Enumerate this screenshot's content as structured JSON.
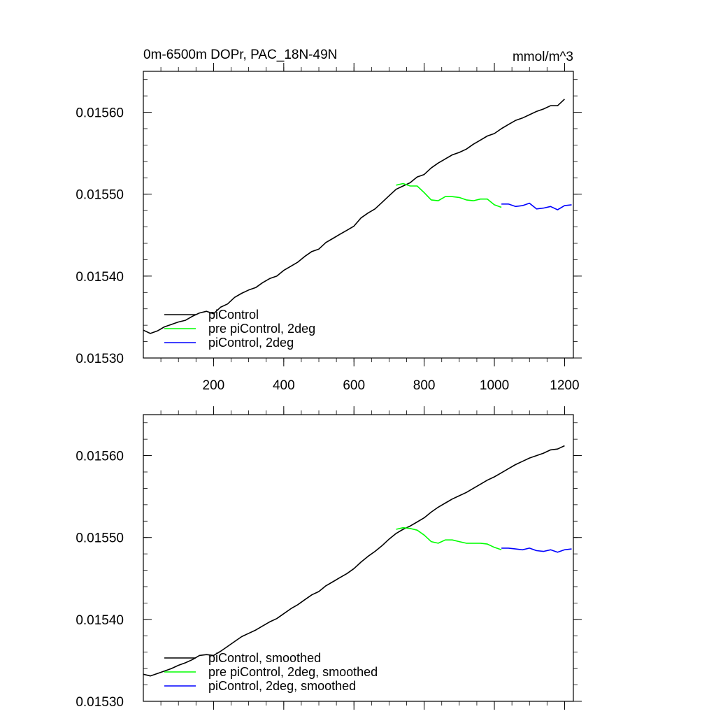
{
  "chart_data": [
    {
      "type": "line",
      "title": "0m-6500m DOPr, PAC_18N-49N",
      "units": "mmol/m^3",
      "xlim": [
        0,
        1225
      ],
      "ylim": [
        0.0153,
        0.01565
      ],
      "xticks": [
        200,
        400,
        600,
        800,
        1000,
        1200
      ],
      "xtick_labels": [
        "200",
        "400",
        "600",
        "800",
        "1000",
        "1200"
      ],
      "yticks": [
        0.0153,
        0.0154,
        0.0155,
        0.0156
      ],
      "ytick_labels": [
        "0.01530",
        "0.01540",
        "0.01550",
        "0.01560"
      ],
      "grid": false,
      "legend_position": "bottom-left",
      "series": [
        {
          "name": "piControl",
          "color": "#000000",
          "points": [
            [
              0,
              0.015334
            ],
            [
              20,
              0.01533
            ],
            [
              40,
              0.015333
            ],
            [
              60,
              0.015338
            ],
            [
              80,
              0.015341
            ],
            [
              100,
              0.015344
            ],
            [
              120,
              0.015346
            ],
            [
              140,
              0.015351
            ],
            [
              160,
              0.015355
            ],
            [
              180,
              0.015357
            ],
            [
              200,
              0.015354
            ],
            [
              220,
              0.015362
            ],
            [
              240,
              0.015366
            ],
            [
              260,
              0.015374
            ],
            [
              280,
              0.015379
            ],
            [
              300,
              0.015383
            ],
            [
              320,
              0.015386
            ],
            [
              340,
              0.015392
            ],
            [
              360,
              0.015397
            ],
            [
              380,
              0.0154
            ],
            [
              400,
              0.015407
            ],
            [
              420,
              0.015412
            ],
            [
              440,
              0.015417
            ],
            [
              460,
              0.015424
            ],
            [
              480,
              0.01543
            ],
            [
              500,
              0.015433
            ],
            [
              520,
              0.015441
            ],
            [
              540,
              0.015446
            ],
            [
              560,
              0.015451
            ],
            [
              580,
              0.015456
            ],
            [
              600,
              0.015461
            ],
            [
              620,
              0.015471
            ],
            [
              640,
              0.015477
            ],
            [
              660,
              0.015482
            ],
            [
              680,
              0.01549
            ],
            [
              700,
              0.015498
            ],
            [
              720,
              0.015506
            ],
            [
              740,
              0.01551
            ],
            [
              760,
              0.015514
            ],
            [
              780,
              0.015521
            ],
            [
              800,
              0.015524
            ],
            [
              820,
              0.015532
            ],
            [
              840,
              0.015538
            ],
            [
              860,
              0.015543
            ],
            [
              880,
              0.015548
            ],
            [
              900,
              0.015551
            ],
            [
              920,
              0.015555
            ],
            [
              940,
              0.015561
            ],
            [
              960,
              0.015566
            ],
            [
              980,
              0.015571
            ],
            [
              1000,
              0.015574
            ],
            [
              1020,
              0.01558
            ],
            [
              1040,
              0.015585
            ],
            [
              1060,
              0.01559
            ],
            [
              1080,
              0.015593
            ],
            [
              1100,
              0.015597
            ],
            [
              1120,
              0.015601
            ],
            [
              1140,
              0.015604
            ],
            [
              1160,
              0.015608
            ],
            [
              1180,
              0.015608
            ],
            [
              1200,
              0.015616
            ]
          ]
        },
        {
          "name": "pre piControl, 2deg",
          "color": "#00ff00",
          "points": [
            [
              720,
              0.015511
            ],
            [
              740,
              0.015513
            ],
            [
              760,
              0.01551
            ],
            [
              780,
              0.01551
            ],
            [
              800,
              0.015502
            ],
            [
              820,
              0.015493
            ],
            [
              840,
              0.015492
            ],
            [
              860,
              0.015497
            ],
            [
              880,
              0.015497
            ],
            [
              900,
              0.015496
            ],
            [
              920,
              0.015493
            ],
            [
              940,
              0.015492
            ],
            [
              960,
              0.015494
            ],
            [
              980,
              0.015494
            ],
            [
              1000,
              0.015487
            ],
            [
              1020,
              0.015484
            ]
          ]
        },
        {
          "name": "piControl, 2deg",
          "color": "#0000ff",
          "points": [
            [
              1020,
              0.015488
            ],
            [
              1040,
              0.015488
            ],
            [
              1060,
              0.015485
            ],
            [
              1080,
              0.015486
            ],
            [
              1100,
              0.015489
            ],
            [
              1120,
              0.015482
            ],
            [
              1140,
              0.015483
            ],
            [
              1160,
              0.015485
            ],
            [
              1180,
              0.015481
            ],
            [
              1200,
              0.015486
            ],
            [
              1220,
              0.015487
            ]
          ]
        }
      ]
    },
    {
      "type": "line",
      "title": "",
      "units": "",
      "xlim": [
        0,
        1225
      ],
      "ylim": [
        0.0153,
        0.01565
      ],
      "xticks": [
        200,
        400,
        600,
        800,
        1000,
        1200
      ],
      "yticks": [
        0.0153,
        0.0154,
        0.0155,
        0.0156
      ],
      "ytick_labels": [
        "0.01530",
        "0.01540",
        "0.01550",
        "0.01560"
      ],
      "grid": false,
      "legend_position": "bottom-left",
      "series": [
        {
          "name": "piControl, smoothed",
          "color": "#000000",
          "points": [
            [
              0,
              0.015333
            ],
            [
              20,
              0.015331
            ],
            [
              40,
              0.015334
            ],
            [
              60,
              0.015337
            ],
            [
              80,
              0.01534
            ],
            [
              100,
              0.015344
            ],
            [
              120,
              0.015347
            ],
            [
              140,
              0.015351
            ],
            [
              160,
              0.015356
            ],
            [
              180,
              0.015357
            ],
            [
              200,
              0.015356
            ],
            [
              220,
              0.015361
            ],
            [
              240,
              0.015367
            ],
            [
              260,
              0.015373
            ],
            [
              280,
              0.015379
            ],
            [
              300,
              0.015383
            ],
            [
              320,
              0.015387
            ],
            [
              340,
              0.015392
            ],
            [
              360,
              0.015397
            ],
            [
              380,
              0.015401
            ],
            [
              400,
              0.015407
            ],
            [
              420,
              0.015413
            ],
            [
              440,
              0.015418
            ],
            [
              460,
              0.015424
            ],
            [
              480,
              0.01543
            ],
            [
              500,
              0.015434
            ],
            [
              520,
              0.015441
            ],
            [
              540,
              0.015446
            ],
            [
              560,
              0.015451
            ],
            [
              580,
              0.015456
            ],
            [
              600,
              0.015462
            ],
            [
              620,
              0.01547
            ],
            [
              640,
              0.015477
            ],
            [
              660,
              0.015483
            ],
            [
              680,
              0.01549
            ],
            [
              700,
              0.015498
            ],
            [
              720,
              0.015505
            ],
            [
              740,
              0.01551
            ],
            [
              760,
              0.015514
            ],
            [
              780,
              0.015519
            ],
            [
              800,
              0.015524
            ],
            [
              820,
              0.015531
            ],
            [
              840,
              0.015537
            ],
            [
              860,
              0.015542
            ],
            [
              880,
              0.015547
            ],
            [
              900,
              0.015551
            ],
            [
              920,
              0.015555
            ],
            [
              940,
              0.01556
            ],
            [
              960,
              0.015565
            ],
            [
              980,
              0.01557
            ],
            [
              1000,
              0.015574
            ],
            [
              1020,
              0.015579
            ],
            [
              1040,
              0.015584
            ],
            [
              1060,
              0.015589
            ],
            [
              1080,
              0.015593
            ],
            [
              1100,
              0.015597
            ],
            [
              1120,
              0.0156
            ],
            [
              1140,
              0.015603
            ],
            [
              1160,
              0.015607
            ],
            [
              1180,
              0.015608
            ],
            [
              1200,
              0.015612
            ]
          ]
        },
        {
          "name": "pre piControl, 2deg, smoothed",
          "color": "#00ff00",
          "points": [
            [
              720,
              0.01551
            ],
            [
              740,
              0.015512
            ],
            [
              760,
              0.015511
            ],
            [
              780,
              0.015509
            ],
            [
              800,
              0.015503
            ],
            [
              820,
              0.015495
            ],
            [
              840,
              0.015493
            ],
            [
              860,
              0.015497
            ],
            [
              880,
              0.015497
            ],
            [
              900,
              0.015495
            ],
            [
              920,
              0.015493
            ],
            [
              940,
              0.015493
            ],
            [
              960,
              0.015493
            ],
            [
              980,
              0.015492
            ],
            [
              1000,
              0.015488
            ],
            [
              1020,
              0.015485
            ]
          ]
        },
        {
          "name": "piControl, 2deg, smoothed",
          "color": "#0000ff",
          "points": [
            [
              1020,
              0.015487
            ],
            [
              1040,
              0.015487
            ],
            [
              1060,
              0.015486
            ],
            [
              1080,
              0.015485
            ],
            [
              1100,
              0.015487
            ],
            [
              1120,
              0.015484
            ],
            [
              1140,
              0.015483
            ],
            [
              1160,
              0.015485
            ],
            [
              1180,
              0.015482
            ],
            [
              1200,
              0.015485
            ],
            [
              1220,
              0.015486
            ]
          ]
        }
      ]
    }
  ]
}
